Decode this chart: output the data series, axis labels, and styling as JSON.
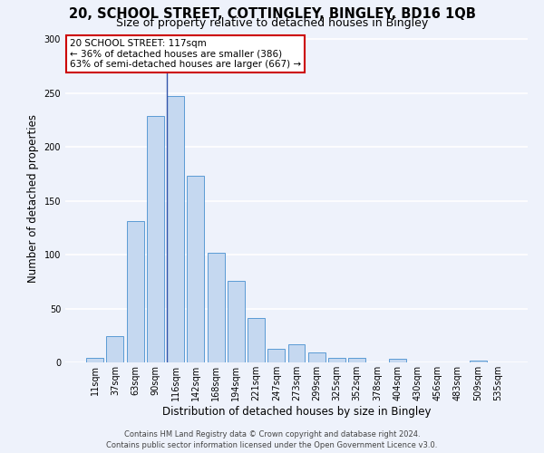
{
  "title": "20, SCHOOL STREET, COTTINGLEY, BINGLEY, BD16 1QB",
  "subtitle": "Size of property relative to detached houses in Bingley",
  "xlabel": "Distribution of detached houses by size in Bingley",
  "ylabel": "Number of detached properties",
  "bar_labels": [
    "11sqm",
    "37sqm",
    "63sqm",
    "90sqm",
    "116sqm",
    "142sqm",
    "168sqm",
    "194sqm",
    "221sqm",
    "247sqm",
    "273sqm",
    "299sqm",
    "325sqm",
    "352sqm",
    "378sqm",
    "404sqm",
    "430sqm",
    "456sqm",
    "483sqm",
    "509sqm",
    "535sqm"
  ],
  "bar_values": [
    4,
    24,
    131,
    229,
    247,
    173,
    102,
    76,
    41,
    13,
    17,
    9,
    4,
    4,
    0,
    3,
    0,
    0,
    0,
    2,
    0
  ],
  "bar_color": "#c5d8f0",
  "bar_edge_color": "#5b9bd5",
  "annotation_title": "20 SCHOOL STREET: 117sqm",
  "annotation_line1": "← 36% of detached houses are smaller (386)",
  "annotation_line2": "63% of semi-detached houses are larger (667) →",
  "annotation_box_color": "#ffffff",
  "annotation_box_edge_color": "#cc0000",
  "vline_color": "#3355aa",
  "vline_x_index": 4,
  "ylim": [
    0,
    305
  ],
  "footer1": "Contains HM Land Registry data © Crown copyright and database right 2024.",
  "footer2": "Contains public sector information licensed under the Open Government Licence v3.0.",
  "bg_color": "#eef2fb",
  "plot_bg_color": "#eef2fb",
  "grid_color": "#ffffff",
  "title_fontsize": 10.5,
  "subtitle_fontsize": 9,
  "ylabel_fontsize": 8.5,
  "xlabel_fontsize": 8.5,
  "tick_fontsize": 7,
  "footer_fontsize": 6,
  "annotation_fontsize": 7.5
}
